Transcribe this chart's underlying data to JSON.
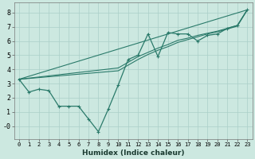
{
  "xlabel": "Humidex (Indice chaleur)",
  "bg_color": "#cce8e0",
  "line_color": "#2a7a6a",
  "grid_color": "#aacfc8",
  "xlim": [
    -0.5,
    23.5
  ],
  "ylim": [
    -0.9,
    8.7
  ],
  "xticks": [
    0,
    1,
    2,
    3,
    4,
    5,
    6,
    7,
    8,
    9,
    10,
    11,
    12,
    13,
    14,
    15,
    16,
    17,
    18,
    19,
    20,
    21,
    22,
    23
  ],
  "yticks": [
    0,
    1,
    2,
    3,
    4,
    5,
    6,
    7,
    8
  ],
  "ytick_labels": [
    "-0",
    "1",
    "2",
    "3",
    "4",
    "5",
    "6",
    "7",
    "8"
  ],
  "line_main_x": [
    0,
    1,
    2,
    3,
    4,
    5,
    6,
    7,
    8,
    9,
    10,
    11,
    12,
    13,
    14,
    15,
    16,
    17,
    18,
    19,
    20,
    21,
    22,
    23
  ],
  "line_main_y": [
    3.3,
    2.4,
    2.6,
    2.5,
    1.4,
    1.4,
    1.4,
    0.5,
    -0.4,
    1.2,
    2.9,
    4.7,
    5.0,
    6.5,
    4.9,
    6.6,
    6.5,
    6.5,
    6.0,
    6.4,
    6.5,
    6.9,
    7.1,
    8.2
  ],
  "line2_x": [
    0,
    23
  ],
  "line2_y": [
    3.3,
    8.2
  ],
  "line3_x": [
    0,
    10,
    11,
    12,
    13,
    14,
    15,
    16,
    17,
    18,
    19,
    20,
    21,
    22,
    23
  ],
  "line3_y": [
    3.3,
    3.9,
    4.3,
    4.7,
    5.05,
    5.35,
    5.6,
    5.9,
    6.1,
    6.3,
    6.5,
    6.65,
    6.85,
    7.05,
    8.2
  ],
  "line4_x": [
    0,
    10,
    11,
    12,
    13,
    14,
    15,
    16,
    17,
    18,
    19,
    20,
    21,
    22,
    23
  ],
  "line4_y": [
    3.3,
    4.1,
    4.5,
    4.9,
    5.2,
    5.5,
    5.75,
    6.05,
    6.2,
    6.4,
    6.55,
    6.7,
    6.9,
    7.1,
    8.2
  ]
}
